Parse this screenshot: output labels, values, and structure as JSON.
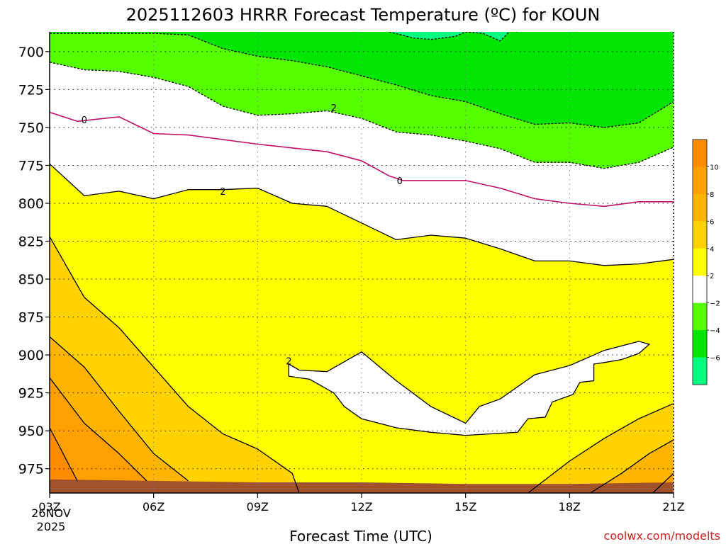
{
  "chart_data": {
    "type": "filled-contour",
    "title": "2025112603 HRRR Forecast Temperature (ºC) for KOUN",
    "xlabel": "Forecast Time (UTC)",
    "ylabel": "",
    "credit": "coolwx.com/modelts",
    "date_label": [
      "26NOV",
      "2025"
    ],
    "x_ticks": [
      {
        "hour": 3,
        "label": "03Z"
      },
      {
        "hour": 6,
        "label": "06Z"
      },
      {
        "hour": 9,
        "label": "09Z"
      },
      {
        "hour": 12,
        "label": "12Z"
      },
      {
        "hour": 15,
        "label": "15Z"
      },
      {
        "hour": 18,
        "label": "18Z"
      },
      {
        "hour": 21,
        "label": "21Z"
      }
    ],
    "xlim": [
      3,
      21
    ],
    "y_ticks": [
      700,
      725,
      750,
      775,
      800,
      825,
      850,
      875,
      900,
      925,
      950,
      975
    ],
    "ylim_hpa": [
      687,
      991
    ],
    "ground_pressure_hpa": 983,
    "colorbar": {
      "ticks": [
        "10",
        "8",
        "6",
        "4",
        "2",
        "−2",
        "−4",
        "−6"
      ],
      "bins": [
        {
          "range": [
            10,
            12
          ],
          "color": "#ff8c00"
        },
        {
          "range": [
            8,
            10
          ],
          "color": "#ffa000"
        },
        {
          "range": [
            6,
            8
          ],
          "color": "#ffb400"
        },
        {
          "range": [
            4,
            6
          ],
          "color": "#ffd200"
        },
        {
          "range": [
            2,
            4
          ],
          "color": "#ffff00"
        },
        {
          "range": [
            -2,
            2
          ],
          "color": "#ffffff"
        },
        {
          "range": [
            -4,
            -2
          ],
          "color": "#55ff00"
        },
        {
          "range": [
            -6,
            -4
          ],
          "color": "#00e600"
        },
        {
          "range": [
            -8,
            -6
          ],
          "color": "#00ff80"
        }
      ]
    },
    "contour_labels": [
      {
        "value": "0",
        "hour": 4.0,
        "hpa": 745
      },
      {
        "value": "2",
        "hour": 11.2,
        "hpa": 737
      },
      {
        "value": "0",
        "hour": 13.1,
        "hpa": 785
      },
      {
        "value": "2",
        "hour": 8.0,
        "hpa": 792
      },
      {
        "value": "2",
        "hour": 9.9,
        "hpa": 904
      }
    ],
    "lines": {
      "zero_upper": {
        "style": "solid-magenta",
        "hours": [
          3.0,
          3.8,
          5.0,
          6.0,
          7.0,
          9.0,
          11.0,
          12.0,
          12.8,
          13.2,
          15.0,
          16.0,
          17.0,
          18.0,
          19.0,
          20.0,
          21.0
        ],
        "hpa": [
          740,
          746,
          743,
          754,
          755,
          761,
          766,
          772,
          782,
          785,
          785,
          790,
          797,
          800,
          802,
          799,
          799
        ]
      },
      "two_mid": {
        "style": "solid-black",
        "hours": [
          3.0,
          4.0,
          5.0,
          6.0,
          7.0,
          8.0,
          9.0,
          10.0,
          11.0,
          12.0,
          13.0,
          14.0,
          15.0,
          16.0,
          17.0,
          18.0,
          19.0,
          20.0,
          21.0
        ],
        "hpa": [
          774,
          795,
          792,
          797,
          791,
          791,
          790,
          800,
          802,
          813,
          824,
          821,
          823,
          830,
          838,
          838,
          841,
          840,
          837
        ]
      },
      "two_upper": {
        "style": "dashed-black",
        "hours": [
          3.0,
          4.0,
          5.0,
          6.0,
          7.0,
          8.0,
          9.0,
          10.0,
          11.0,
          12.0,
          13.0,
          14.0,
          15.0,
          16.0,
          17.0,
          18.0,
          19.0,
          20.0,
          21.0
        ],
        "hpa": [
          707,
          712,
          713,
          717,
          723,
          736,
          742,
          741,
          739,
          744,
          753,
          755,
          759,
          764,
          773,
          773,
          777,
          773,
          763
        ]
      },
      "four_upper": {
        "style": "dashed-black",
        "hours": [
          3.0,
          4.0,
          5.0,
          6.0,
          7.0,
          8.0,
          9.0,
          10.0,
          11.0,
          12.0,
          13.0,
          14.0,
          15.0,
          16.0,
          17.0,
          18.0,
          19.0,
          20.0,
          21.0
        ],
        "hpa": [
          688,
          688,
          688,
          688,
          689,
          698,
          703,
          706,
          710,
          716,
          722,
          729,
          733,
          741,
          748,
          747,
          750,
          747,
          733
        ]
      },
      "six_upper": {
        "style": "dashed-black",
        "hours": [
          12.8,
          13.5,
          14.0,
          14.7,
          15.0,
          15.5,
          16.0,
          16.3,
          16.5
        ],
        "hpa": [
          687,
          691,
          692,
          690,
          687,
          688,
          693,
          686,
          687
        ]
      }
    }
  }
}
